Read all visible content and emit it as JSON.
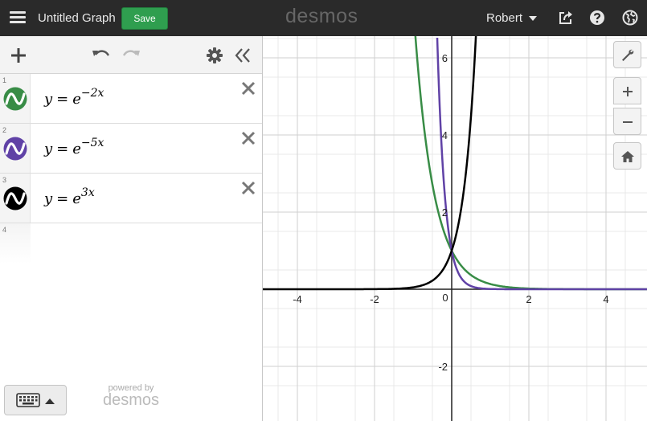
{
  "header": {
    "title": "Untitled Graph",
    "save_label": "Save",
    "logo": "desmos",
    "user": "Robert",
    "icons": [
      "menu-icon",
      "share-icon",
      "help-icon",
      "globe-icon"
    ]
  },
  "panel": {
    "toolbar_icons": [
      "plus-icon",
      "undo-icon",
      "redo-icon",
      "gear-icon",
      "double-chevron-left-icon"
    ],
    "expressions": [
      {
        "num": "1",
        "lhs": "y",
        "op": "=",
        "base": "e",
        "exponent": "−2x",
        "color": "#388c46"
      },
      {
        "num": "2",
        "lhs": "y",
        "op": "=",
        "base": "e",
        "exponent": "−5x",
        "color": "#6042a6"
      },
      {
        "num": "3",
        "lhs": "y",
        "op": "=",
        "base": "e",
        "exponent": "3x",
        "color": "#000000"
      }
    ],
    "empty_row_num": "4",
    "powered_by": "powered by",
    "powered_logo": "desmos"
  },
  "graph": {
    "x_ticks": [
      "-4",
      "-2",
      "0",
      "2",
      "4"
    ],
    "y_ticks": [
      "6",
      "4",
      "2",
      "-2"
    ],
    "controls": [
      "wrench-icon",
      "zoom-in-icon",
      "zoom-out-icon",
      "home-icon"
    ]
  }
}
